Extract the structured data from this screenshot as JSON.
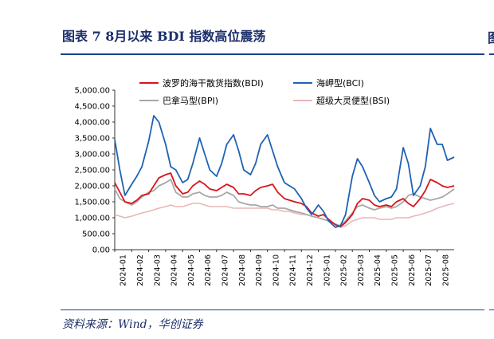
{
  "figure": {
    "title": "图表 7   8月以来 BDI 指数高位震荡",
    "source": "资料来源：Wind，华创证券",
    "edge_glyph": "图"
  },
  "colors": {
    "title": "#1c2e6b",
    "rule": "#1c3f8f",
    "bdi": "#d9151b",
    "bci": "#1f62b4",
    "bpi": "#a8a8a8",
    "bsi": "#e8b7b5"
  },
  "chart_data": {
    "type": "line",
    "title": "",
    "xlabel": "",
    "ylabel": "",
    "ylim": [
      0,
      5000
    ],
    "y_ticks": [
      "0.00",
      "500.00",
      "1,000.00",
      "1,500.00",
      "2,000.00",
      "2,500.00",
      "3,000.00",
      "3,500.00",
      "4,000.00",
      "4,500.00",
      "5,000.00"
    ],
    "x_tick_labels": [
      "2024-01",
      "2024-02",
      "2024-03",
      "2024-04",
      "2024-05",
      "2024-06",
      "2024-07",
      "2024-08",
      "2024-09",
      "2024-10",
      "2024-11",
      "2024-12",
      "2025-01",
      "2025-02",
      "2025-03",
      "2025-04",
      "2025-05",
      "2025-06",
      "2025-07",
      "2025-08"
    ],
    "x_start": "2024-01",
    "legend_position": "top",
    "grid": false,
    "series": [
      {
        "name": "波罗的海干散货指数(BDI)",
        "key": "bdi",
        "values": [
          [
            0.0,
            2100
          ],
          [
            0.3,
            1800
          ],
          [
            0.6,
            1500
          ],
          [
            1.0,
            1450
          ],
          [
            1.3,
            1550
          ],
          [
            1.6,
            1700
          ],
          [
            2.0,
            1750
          ],
          [
            2.3,
            2000
          ],
          [
            2.6,
            2250
          ],
          [
            3.0,
            2350
          ],
          [
            3.3,
            2400
          ],
          [
            3.6,
            2000
          ],
          [
            4.0,
            1750
          ],
          [
            4.3,
            1800
          ],
          [
            4.6,
            2000
          ],
          [
            5.0,
            2150
          ],
          [
            5.3,
            2050
          ],
          [
            5.6,
            1900
          ],
          [
            6.0,
            1850
          ],
          [
            6.3,
            1950
          ],
          [
            6.6,
            2050
          ],
          [
            7.0,
            1950
          ],
          [
            7.3,
            1750
          ],
          [
            7.6,
            1750
          ],
          [
            8.0,
            1700
          ],
          [
            8.3,
            1850
          ],
          [
            8.6,
            1950
          ],
          [
            9.0,
            2000
          ],
          [
            9.3,
            2050
          ],
          [
            9.6,
            1800
          ],
          [
            10.0,
            1600
          ],
          [
            10.3,
            1550
          ],
          [
            10.6,
            1500
          ],
          [
            11.0,
            1450
          ],
          [
            11.3,
            1350
          ],
          [
            11.6,
            1150
          ],
          [
            12.0,
            1050
          ],
          [
            12.3,
            1100
          ],
          [
            12.6,
            950
          ],
          [
            13.0,
            780
          ],
          [
            13.3,
            720
          ],
          [
            13.6,
            850
          ],
          [
            14.0,
            1100
          ],
          [
            14.3,
            1450
          ],
          [
            14.6,
            1600
          ],
          [
            15.0,
            1550
          ],
          [
            15.3,
            1400
          ],
          [
            15.6,
            1350
          ],
          [
            16.0,
            1400
          ],
          [
            16.3,
            1350
          ],
          [
            16.6,
            1500
          ],
          [
            17.0,
            1600
          ],
          [
            17.3,
            1450
          ],
          [
            17.6,
            1350
          ],
          [
            18.0,
            1600
          ],
          [
            18.3,
            1850
          ],
          [
            18.6,
            2200
          ],
          [
            19.0,
            2100
          ],
          [
            19.3,
            2000
          ],
          [
            19.6,
            1950
          ],
          [
            20.0,
            2000
          ]
        ]
      },
      {
        "name": "海岬型(BCI)",
        "key": "bci",
        "values": [
          [
            0.0,
            3450
          ],
          [
            0.3,
            2500
          ],
          [
            0.6,
            1700
          ],
          [
            1.0,
            2050
          ],
          [
            1.3,
            2300
          ],
          [
            1.6,
            2600
          ],
          [
            2.0,
            3400
          ],
          [
            2.3,
            4200
          ],
          [
            2.6,
            4000
          ],
          [
            3.0,
            3300
          ],
          [
            3.3,
            2600
          ],
          [
            3.6,
            2500
          ],
          [
            4.0,
            2100
          ],
          [
            4.3,
            2200
          ],
          [
            4.6,
            2700
          ],
          [
            5.0,
            3500
          ],
          [
            5.3,
            3000
          ],
          [
            5.6,
            2500
          ],
          [
            6.0,
            2300
          ],
          [
            6.3,
            2700
          ],
          [
            6.6,
            3300
          ],
          [
            7.0,
            3600
          ],
          [
            7.3,
            3100
          ],
          [
            7.6,
            2500
          ],
          [
            8.0,
            2350
          ],
          [
            8.3,
            2700
          ],
          [
            8.6,
            3300
          ],
          [
            9.0,
            3600
          ],
          [
            9.3,
            3100
          ],
          [
            9.6,
            2600
          ],
          [
            10.0,
            2100
          ],
          [
            10.3,
            2000
          ],
          [
            10.6,
            1900
          ],
          [
            11.0,
            1600
          ],
          [
            11.3,
            1300
          ],
          [
            11.6,
            1100
          ],
          [
            12.0,
            1400
          ],
          [
            12.3,
            1200
          ],
          [
            12.6,
            900
          ],
          [
            13.0,
            700
          ],
          [
            13.3,
            750
          ],
          [
            13.6,
            1100
          ],
          [
            14.0,
            2300
          ],
          [
            14.3,
            2850
          ],
          [
            14.6,
            2600
          ],
          [
            15.0,
            2100
          ],
          [
            15.3,
            1700
          ],
          [
            15.6,
            1500
          ],
          [
            16.0,
            1600
          ],
          [
            16.3,
            1650
          ],
          [
            16.6,
            1900
          ],
          [
            17.0,
            3200
          ],
          [
            17.3,
            2700
          ],
          [
            17.6,
            1700
          ],
          [
            18.0,
            2000
          ],
          [
            18.3,
            2600
          ],
          [
            18.6,
            3800
          ],
          [
            19.0,
            3300
          ],
          [
            19.3,
            3300
          ],
          [
            19.6,
            2800
          ],
          [
            20.0,
            2900
          ]
        ]
      },
      {
        "name": "巴拿马型(BPI)",
        "key": "bpi",
        "values": [
          [
            0.0,
            1900
          ],
          [
            0.3,
            1600
          ],
          [
            0.6,
            1500
          ],
          [
            1.0,
            1400
          ],
          [
            1.3,
            1500
          ],
          [
            1.6,
            1650
          ],
          [
            2.0,
            1800
          ],
          [
            2.3,
            1850
          ],
          [
            2.6,
            2000
          ],
          [
            3.0,
            2100
          ],
          [
            3.3,
            2200
          ],
          [
            3.6,
            1800
          ],
          [
            4.0,
            1650
          ],
          [
            4.3,
            1650
          ],
          [
            4.6,
            1750
          ],
          [
            5.0,
            1800
          ],
          [
            5.3,
            1700
          ],
          [
            5.6,
            1650
          ],
          [
            6.0,
            1650
          ],
          [
            6.3,
            1700
          ],
          [
            6.6,
            1800
          ],
          [
            7.0,
            1700
          ],
          [
            7.3,
            1500
          ],
          [
            7.6,
            1450
          ],
          [
            8.0,
            1400
          ],
          [
            8.3,
            1400
          ],
          [
            8.6,
            1350
          ],
          [
            9.0,
            1350
          ],
          [
            9.3,
            1400
          ],
          [
            9.6,
            1300
          ],
          [
            10.0,
            1300
          ],
          [
            10.3,
            1250
          ],
          [
            10.6,
            1200
          ],
          [
            11.0,
            1150
          ],
          [
            11.3,
            1100
          ],
          [
            11.6,
            1050
          ],
          [
            12.0,
            1000
          ],
          [
            12.3,
            950
          ],
          [
            12.6,
            900
          ],
          [
            13.0,
            800
          ],
          [
            13.3,
            750
          ],
          [
            13.6,
            900
          ],
          [
            14.0,
            1150
          ],
          [
            14.3,
            1350
          ],
          [
            14.6,
            1400
          ],
          [
            15.0,
            1300
          ],
          [
            15.3,
            1250
          ],
          [
            15.6,
            1300
          ],
          [
            16.0,
            1350
          ],
          [
            16.3,
            1300
          ],
          [
            16.6,
            1350
          ],
          [
            17.0,
            1500
          ],
          [
            17.3,
            1700
          ],
          [
            17.6,
            1750
          ],
          [
            18.0,
            1650
          ],
          [
            18.3,
            1600
          ],
          [
            18.6,
            1550
          ],
          [
            19.0,
            1600
          ],
          [
            19.3,
            1650
          ],
          [
            19.6,
            1750
          ],
          [
            20.0,
            1900
          ]
        ]
      },
      {
        "name": "超级大灵便型(BSI)",
        "key": "bsi",
        "values": [
          [
            0.0,
            1100
          ],
          [
            0.3,
            1050
          ],
          [
            0.6,
            1000
          ],
          [
            1.0,
            1050
          ],
          [
            1.3,
            1100
          ],
          [
            1.6,
            1150
          ],
          [
            2.0,
            1200
          ],
          [
            2.3,
            1250
          ],
          [
            2.6,
            1300
          ],
          [
            3.0,
            1350
          ],
          [
            3.3,
            1400
          ],
          [
            3.6,
            1350
          ],
          [
            4.0,
            1350
          ],
          [
            4.3,
            1400
          ],
          [
            4.6,
            1450
          ],
          [
            5.0,
            1450
          ],
          [
            5.3,
            1400
          ],
          [
            5.6,
            1350
          ],
          [
            6.0,
            1350
          ],
          [
            6.3,
            1350
          ],
          [
            6.6,
            1350
          ],
          [
            7.0,
            1300
          ],
          [
            7.3,
            1300
          ],
          [
            7.6,
            1300
          ],
          [
            8.0,
            1300
          ],
          [
            8.3,
            1300
          ],
          [
            8.6,
            1300
          ],
          [
            9.0,
            1300
          ],
          [
            9.3,
            1250
          ],
          [
            9.6,
            1250
          ],
          [
            10.0,
            1200
          ],
          [
            10.3,
            1200
          ],
          [
            10.6,
            1150
          ],
          [
            11.0,
            1100
          ],
          [
            11.3,
            1100
          ],
          [
            11.6,
            1050
          ],
          [
            12.0,
            1000
          ],
          [
            12.3,
            950
          ],
          [
            12.6,
            900
          ],
          [
            13.0,
            800
          ],
          [
            13.3,
            700
          ],
          [
            13.6,
            750
          ],
          [
            14.0,
            900
          ],
          [
            14.3,
            950
          ],
          [
            14.6,
            1000
          ],
          [
            15.0,
            1000
          ],
          [
            15.3,
            1000
          ],
          [
            15.6,
            950
          ],
          [
            16.0,
            950
          ],
          [
            16.3,
            950
          ],
          [
            16.6,
            1000
          ],
          [
            17.0,
            1000
          ],
          [
            17.3,
            1000
          ],
          [
            17.6,
            1050
          ],
          [
            18.0,
            1100
          ],
          [
            18.3,
            1150
          ],
          [
            18.6,
            1200
          ],
          [
            19.0,
            1300
          ],
          [
            19.3,
            1350
          ],
          [
            19.6,
            1400
          ],
          [
            20.0,
            1450
          ]
        ]
      }
    ]
  }
}
